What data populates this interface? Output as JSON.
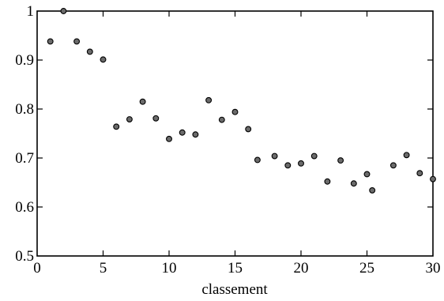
{
  "chart_data": {
    "type": "scatter",
    "title": "",
    "xlabel": "classement",
    "ylabel": "",
    "xlim": [
      0,
      30
    ],
    "ylim": [
      0.5,
      1
    ],
    "x_ticks": [
      "0",
      "5",
      "10",
      "15",
      "20",
      "25",
      "30"
    ],
    "y_ticks": [
      "0.5",
      "0.6",
      "0.7",
      "0.8",
      "0.9",
      "1"
    ],
    "grid": false,
    "legend": "none",
    "marker_color": "#6b6b6b",
    "series": [
      {
        "x": [
          1,
          2,
          3,
          4,
          5,
          6,
          7,
          8,
          9,
          10,
          11,
          12,
          13,
          14,
          15,
          16,
          16.7,
          18,
          19,
          20,
          21,
          22,
          23,
          24,
          25,
          25.4,
          27,
          28,
          29,
          30
        ],
        "y": [
          0.938,
          1.0,
          0.938,
          0.917,
          0.901,
          0.764,
          0.779,
          0.815,
          0.781,
          0.739,
          0.752,
          0.748,
          0.818,
          0.778,
          0.794,
          0.759,
          0.696,
          0.704,
          0.685,
          0.689,
          0.704,
          0.652,
          0.695,
          0.648,
          0.667,
          0.634,
          0.685,
          0.706,
          0.669,
          0.657
        ]
      }
    ]
  }
}
